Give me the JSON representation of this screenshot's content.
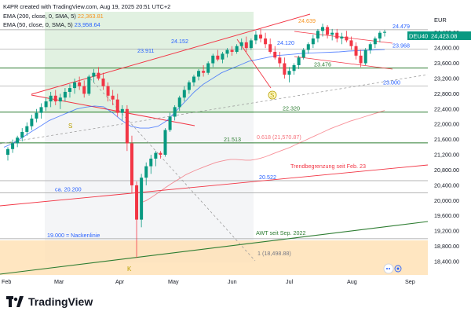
{
  "header": {
    "created": "K4PR created with TradingView.com, Aug 19, 2025 20:51 UTC+2",
    "ema200_label": "EMA (200, close, 0, SMA, 5)",
    "ema200_value": "22,363.81",
    "ema50_label": "EMA (50, close, 0, SMA, 5)",
    "ema50_value": "23,958.64"
  },
  "currency": "EUR",
  "symbol_tag": "DEU40",
  "last_price": "24,423.08",
  "brand": "TradingView",
  "colors": {
    "up": "#089981",
    "down": "#f23645",
    "ema200": "#f7931e",
    "ema50": "#2962ff",
    "resistance": "#f23645",
    "support": "#2e7d32",
    "zone_green": "#c8e6c9",
    "zone_orange": "#ffe0b2"
  },
  "chart_data": {
    "type": "candlestick",
    "x_ticks": [
      "Feb",
      "Mar",
      "Apr",
      "May",
      "Jun",
      "Jul",
      "Aug",
      "Sep"
    ],
    "y_ticks": [
      "18,400.00",
      "18,800.00",
      "19,200.00",
      "19,600.00",
      "20,000.00",
      "20,400.00",
      "20,800.00",
      "21,200.00",
      "21,600.00",
      "22,000.00",
      "22,400.00",
      "22,800.00",
      "23,200.00",
      "23,600.00",
      "24,000.00",
      "24,400.00"
    ],
    "ylim": [
      18050,
      24950
    ],
    "levels": [
      {
        "label": "24.479",
        "value": 24479,
        "color": "#2962ff"
      },
      {
        "label": "23.968",
        "value": 23968,
        "color": "#2962ff"
      },
      {
        "label": "23.476",
        "value": 23476,
        "color": "#2e7d32"
      },
      {
        "label": "23.000",
        "value": 23000,
        "color": "#2962ff"
      },
      {
        "label": "22.320",
        "value": 22320,
        "color": "#2e7d32"
      },
      {
        "label": "21.513",
        "value": 21513,
        "color": "#2e7d32"
      },
      {
        "label": "20.522",
        "value": 20522,
        "color": "#2962ff"
      },
      {
        "label": "ca. 20.200",
        "value": 20200,
        "color": "#2962ff"
      },
      {
        "label": "19.000 = Nackenlinie",
        "value": 19000,
        "color": "#2962ff"
      }
    ],
    "annotations": [
      {
        "text": "24.639",
        "color": "#f7931e"
      },
      {
        "text": "24.152",
        "color": "#2962ff"
      },
      {
        "text": "23.911",
        "color": "#2962ff"
      },
      {
        "text": "24.120",
        "color": "#2962ff"
      },
      {
        "text": "0.618 (21,570.87)",
        "color": "#f23645"
      },
      {
        "text": "Trendbegrenzung seit Feb. 23",
        "color": "#f23645"
      },
      {
        "text": "AWT seit Sep. 2022",
        "color": "#2e7d32"
      },
      {
        "text": "1 (18,498.88)",
        "color": "#787b86"
      }
    ],
    "markers": [
      {
        "text": "S",
        "color": "#b8a000"
      },
      {
        "text": "S",
        "color": "#b8a000"
      },
      {
        "text": "K",
        "color": "#b8a000"
      }
    ],
    "ohlc": [
      [
        21200,
        21400,
        21050,
        21350
      ],
      [
        21350,
        21600,
        21250,
        21500
      ],
      [
        21500,
        21700,
        21400,
        21650
      ],
      [
        21650,
        21900,
        21550,
        21800
      ],
      [
        21800,
        22050,
        21700,
        21950
      ],
      [
        21950,
        22250,
        21850,
        22150
      ],
      [
        22150,
        22400,
        22050,
        22300
      ],
      [
        22300,
        22550,
        22150,
        22450
      ],
      [
        22450,
        22700,
        22350,
        22600
      ],
      [
        22600,
        22850,
        22450,
        22750
      ],
      [
        22750,
        22900,
        22500,
        22600
      ],
      [
        22600,
        22800,
        22400,
        22700
      ],
      [
        22700,
        22950,
        22600,
        22850
      ],
      [
        22850,
        23050,
        22700,
        22950
      ],
      [
        22950,
        23200,
        22800,
        23100
      ],
      [
        23100,
        23250,
        22900,
        23000
      ],
      [
        23000,
        23150,
        22700,
        22800
      ],
      [
        22800,
        23300,
        22750,
        23250
      ],
      [
        23250,
        23450,
        23100,
        23350
      ],
      [
        23350,
        23500,
        23150,
        23200
      ],
      [
        23200,
        23350,
        22900,
        23000
      ],
      [
        23000,
        23100,
        22600,
        22750
      ],
      [
        22750,
        22900,
        22500,
        22650
      ],
      [
        22650,
        22800,
        22200,
        22300
      ],
      [
        22300,
        22500,
        22100,
        22400
      ],
      [
        22400,
        22500,
        21300,
        21500
      ],
      [
        21500,
        21700,
        20200,
        20400
      ],
      [
        20400,
        20500,
        18500,
        19500
      ],
      [
        19500,
        20700,
        19300,
        20600
      ],
      [
        20600,
        21000,
        20400,
        20900
      ],
      [
        20900,
        21200,
        20700,
        21100
      ],
      [
        21100,
        21300,
        20900,
        21250
      ],
      [
        21250,
        21300,
        21100,
        21200
      ],
      [
        21200,
        21900,
        21150,
        21850
      ],
      [
        21850,
        22300,
        21800,
        22200
      ],
      [
        22200,
        22500,
        22100,
        22450
      ],
      [
        22450,
        22750,
        22350,
        22700
      ],
      [
        22700,
        23000,
        22600,
        22900
      ],
      [
        22900,
        23150,
        22800,
        23100
      ],
      [
        23100,
        23300,
        23000,
        23250
      ],
      [
        23250,
        23450,
        23150,
        23400
      ],
      [
        23400,
        23550,
        23250,
        23350
      ],
      [
        23350,
        23650,
        23300,
        23600
      ],
      [
        23600,
        23850,
        23500,
        23800
      ],
      [
        23800,
        23950,
        23650,
        23700
      ],
      [
        23700,
        23900,
        23600,
        23850
      ],
      [
        23850,
        24000,
        23750,
        23950
      ],
      [
        23950,
        24050,
        23800,
        23900
      ],
      [
        23900,
        24100,
        23850,
        24050
      ],
      [
        24050,
        24250,
        23950,
        24150
      ],
      [
        24150,
        24300,
        23900,
        24000
      ],
      [
        24000,
        24250,
        23950,
        24200
      ],
      [
        24200,
        24450,
        24100,
        24350
      ],
      [
        24350,
        24500,
        24150,
        24250
      ],
      [
        24250,
        24400,
        24000,
        24100
      ],
      [
        24100,
        24250,
        23850,
        23900
      ],
      [
        23900,
        24050,
        23700,
        23750
      ],
      [
        23750,
        23900,
        23500,
        23600
      ],
      [
        23600,
        23750,
        23200,
        23300
      ],
      [
        23300,
        23500,
        23100,
        23400
      ],
      [
        23400,
        23600,
        23300,
        23550
      ],
      [
        23550,
        23800,
        23450,
        23750
      ],
      [
        23750,
        24000,
        23700,
        23950
      ],
      [
        23950,
        24150,
        23850,
        24100
      ],
      [
        24100,
        24350,
        24000,
        24250
      ],
      [
        24250,
        24500,
        24150,
        24450
      ],
      [
        24450,
        24639,
        24300,
        24550
      ],
      [
        24550,
        24600,
        24250,
        24350
      ],
      [
        24350,
        24500,
        24200,
        24400
      ],
      [
        24400,
        24500,
        24150,
        24250
      ],
      [
        24250,
        24400,
        24100,
        24300
      ],
      [
        24300,
        24450,
        24150,
        24200
      ],
      [
        24200,
        24300,
        23950,
        24050
      ],
      [
        24050,
        24150,
        23700,
        23800
      ],
      [
        23800,
        23950,
        23500,
        23600
      ],
      [
        23600,
        24000,
        23550,
        23950
      ],
      [
        23950,
        24150,
        23850,
        24100
      ],
      [
        24100,
        24300,
        24000,
        24250
      ],
      [
        24250,
        24450,
        24150,
        24400
      ],
      [
        24400,
        24479,
        24300,
        24423
      ]
    ],
    "ema200": [
      19950,
      20000,
      20080,
      20170,
      20260,
      20350,
      20440,
      20520,
      20600,
      20680,
      20740,
      20800,
      20850,
      20900,
      20950,
      21000,
      21030,
      21060,
      21080,
      21080,
      21070,
      21060,
      21060,
      21080,
      21110,
      21150,
      21200,
      21250,
      21300,
      21350,
      21400,
      21460,
      21520,
      21580,
      21640,
      21700,
      21760,
      21820,
      21880,
      21930,
      21980,
      22030,
      22080,
      22120,
      22160,
      22200,
      22240,
      22280,
      22320,
      22363.81
    ],
    "ema50": [
      21400,
      21500,
      21650,
      21800,
      21950,
      22100,
      22200,
      22300,
      22400,
      22450,
      22480,
      22460,
      22300,
      22100,
      21950,
      21900,
      21900,
      21950,
      22100,
      22350,
      22600,
      22850,
      23050,
      23200,
      23350,
      23450,
      23550,
      23650,
      23700,
      23750,
      23800,
      23820,
      23840,
      23860,
      23870,
      23880,
      23890,
      23900,
      23920,
      23930,
      23940,
      23950,
      23958.64
    ]
  }
}
